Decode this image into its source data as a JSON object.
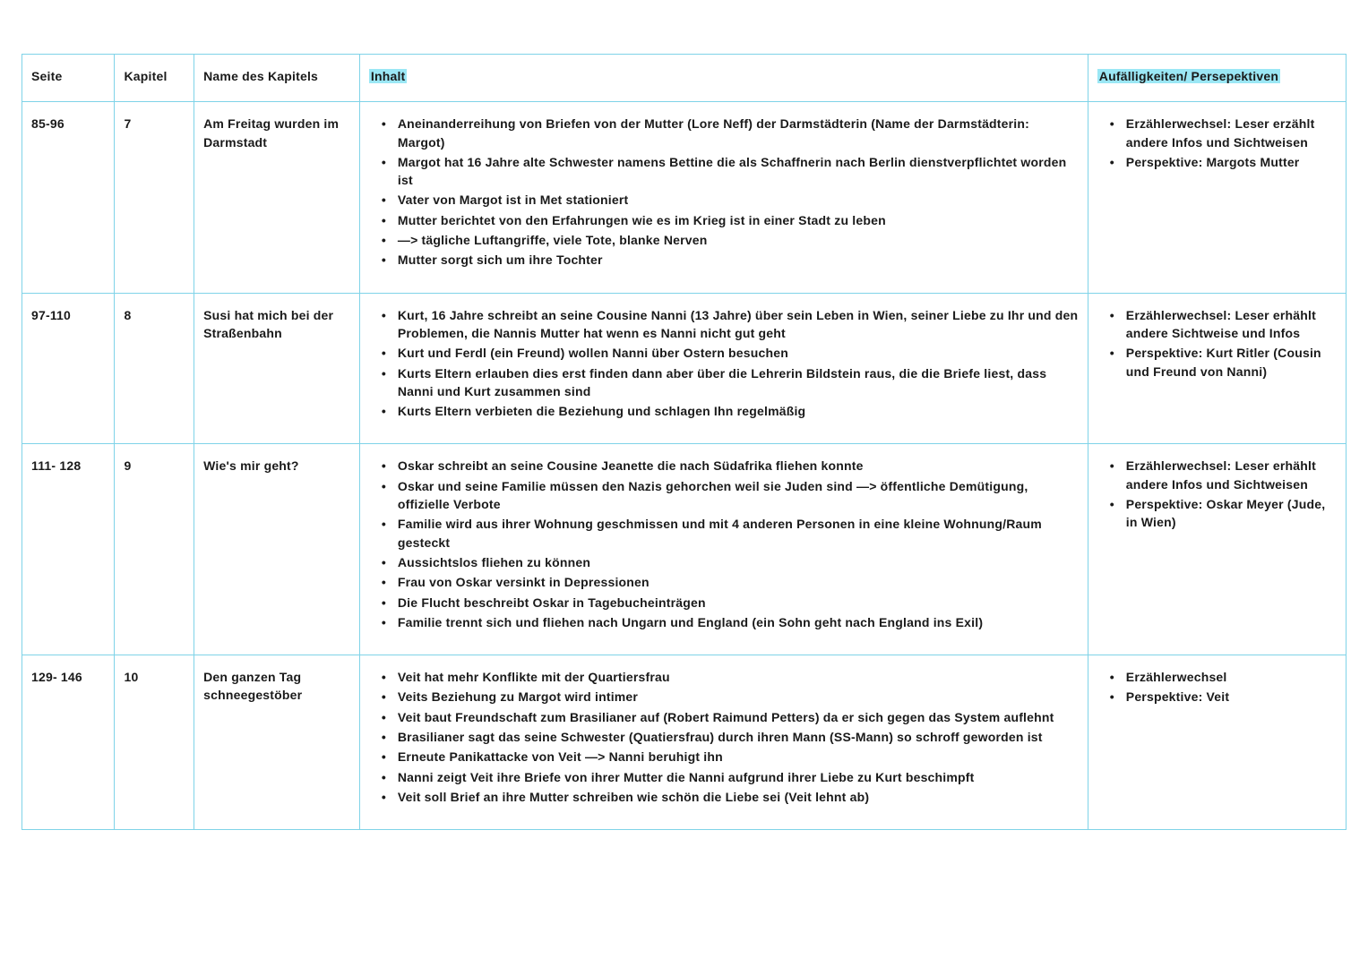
{
  "table": {
    "headers": {
      "seite": "Seite",
      "kapitel": "Kapitel",
      "name": "Name des Kapitels",
      "inhalt": "Inhalt",
      "auff": "Aufälligkeiten/ Persepektiven"
    },
    "rows": [
      {
        "seite": "85-96",
        "kapitel": "7",
        "name": "Am Freitag wurden im Darmstadt",
        "inhalt": [
          "Aneinanderreihung von Briefen von der Mutter (Lore Neff) der Darmstädterin (Name der Darmstädterin: Margot)",
          "Margot hat 16 Jahre alte Schwester namens Bettine die als Schaffnerin nach Berlin dienstverpflichtet worden ist",
          "Vater von Margot ist in Met stationiert",
          "Mutter berichtet von den Erfahrungen wie es im Krieg ist in einer Stadt zu leben",
          "—> tägliche Luftangriffe, viele Tote, blanke Nerven",
          "Mutter sorgt sich um ihre Tochter"
        ],
        "auff": [
          "Erzählerwechsel: Leser erzählt andere Infos und Sichtweisen",
          "Perspektive: Margots Mutter"
        ]
      },
      {
        "seite": "97-110",
        "kapitel": "8",
        "name": "Susi hat mich bei der Straßenbahn",
        "inhalt": [
          "Kurt, 16 Jahre schreibt an seine Cousine Nanni (13 Jahre) über sein Leben in Wien, seiner Liebe zu Ihr und den Problemen, die Nannis Mutter hat wenn es Nanni nicht gut geht",
          "Kurt und Ferdl (ein Freund) wollen Nanni über Ostern besuchen",
          "Kurts Eltern erlauben dies erst finden dann aber über die Lehrerin Bildstein raus, die die Briefe liest, dass Nanni und Kurt zusammen sind",
          "Kurts Eltern verbieten die Beziehung und schlagen Ihn regelmäßig"
        ],
        "auff": [
          "Erzählerwechsel: Leser erhählt andere Sichtweise und Infos",
          "Perspektive: Kurt Ritler (Cousin und Freund von Nanni)"
        ]
      },
      {
        "seite": "111- 128",
        "kapitel": "9",
        "name": "Wie's mir geht?",
        "inhalt": [
          "Oskar schreibt an seine Cousine Jeanette die nach Südafrika fliehen konnte",
          "Oskar und seine Familie müssen den Nazis gehorchen weil sie Juden sind —> öffentliche Demütigung, offizielle Verbote",
          "Familie wird aus ihrer Wohnung geschmissen und mit 4 anderen Personen in eine kleine Wohnung/Raum gesteckt",
          "Aussichtslos fliehen zu können",
          "Frau von Oskar versinkt in Depressionen",
          "Die Flucht beschreibt Oskar in Tagebucheinträgen",
          "Familie trennt sich und fliehen nach Ungarn und England (ein Sohn geht nach England ins Exil)"
        ],
        "auff": [
          "Erzählerwechsel: Leser erhählt andere Infos und Sichtweisen",
          "Perspektive: Oskar Meyer (Jude, in Wien)"
        ]
      },
      {
        "seite": "129- 146",
        "kapitel": "10",
        "name": "Den ganzen Tag schneegestöber",
        "inhalt": [
          "Veit hat mehr Konflikte mit der Quartiersfrau",
          "Veits Beziehung zu Margot wird intimer",
          "Veit baut Freundschaft zum Brasilianer auf (Robert Raimund Petters) da er sich gegen das System auflehnt",
          "Brasilianer sagt das seine Schwester (Quatiersfrau) durch ihren Mann (SS-Mann) so schroff geworden ist",
          "Erneute Panikattacke von Veit —> Nanni beruhigt ihn",
          "Nanni zeigt Veit ihre Briefe von ihrer Mutter die Nanni aufgrund ihrer Liebe zu Kurt beschimpft",
          "Veit soll Brief an ihre Mutter schreiben wie schön die Liebe sei (Veit lehnt ab)"
        ],
        "auff": [
          "Erzählerwechsel",
          "Perspektive: Veit"
        ]
      }
    ],
    "style": {
      "border_color": "#7fd3e8",
      "highlight_color": "#9be7f5",
      "text_color": "#1a1a1a",
      "background_color": "#ffffff",
      "font_weight": 700,
      "font_size_pt": 11,
      "col_widths_pct": [
        7,
        6,
        12.5,
        55,
        19.5
      ]
    }
  }
}
